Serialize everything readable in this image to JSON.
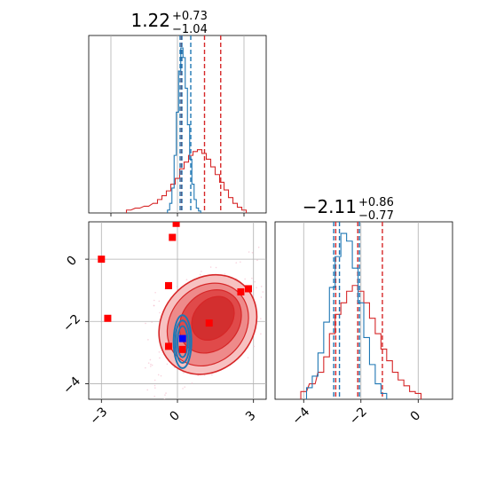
{
  "chart_data": [
    {
      "type": "histogram",
      "panel": "top-left",
      "title": {
        "value": "1.22",
        "upper": "+0.73",
        "lower": "−1.04"
      },
      "xlim": [
        -4,
        4
      ],
      "grid": true,
      "series": [
        {
          "color": "#d62728",
          "quantiles": [
            0.18,
            1.22,
            1.95
          ],
          "bins": [
            [
              -2.2,
              0.3
            ],
            [
              -1.8,
              0.5
            ],
            [
              -1.4,
              0.7
            ],
            [
              -1.0,
              1.0
            ],
            [
              -0.8,
              1.4
            ],
            [
              -0.6,
              1.8
            ],
            [
              -0.4,
              2.3
            ],
            [
              -0.2,
              3.0
            ],
            [
              0.0,
              3.6
            ],
            [
              0.2,
              4.6
            ],
            [
              0.4,
              5.3
            ],
            [
              0.6,
              6.0
            ],
            [
              0.8,
              6.4
            ],
            [
              1.0,
              6.6
            ],
            [
              1.2,
              6.2
            ],
            [
              1.4,
              5.6
            ],
            [
              1.6,
              4.8
            ],
            [
              1.8,
              4.0
            ],
            [
              2.0,
              3.2
            ],
            [
              2.2,
              2.4
            ],
            [
              2.4,
              1.6
            ],
            [
              2.6,
              1.0
            ],
            [
              2.8,
              0.6
            ],
            [
              3.0,
              0.3
            ]
          ]
        },
        {
          "color": "#1f77b4",
          "quantiles": [
            0.12,
            0.2,
            0.6
          ],
          "bins": [
            [
              -0.4,
              0.3
            ],
            [
              -0.3,
              1.0
            ],
            [
              -0.2,
              2.6
            ],
            [
              -0.1,
              6.0
            ],
            [
              0.0,
              10.5
            ],
            [
              0.1,
              14.8
            ],
            [
              0.2,
              17.2
            ],
            [
              0.3,
              16.2
            ],
            [
              0.4,
              13.0
            ],
            [
              0.5,
              9.2
            ],
            [
              0.6,
              5.6
            ],
            [
              0.7,
              3.0
            ],
            [
              0.8,
              1.4
            ],
            [
              0.9,
              0.5
            ],
            [
              1.0,
              0.2
            ]
          ]
        }
      ]
    },
    {
      "type": "histogram",
      "panel": "bottom-right",
      "title": {
        "value": "−2.11",
        "upper": "+0.86",
        "lower": "−0.77"
      },
      "xlim": [
        -5,
        1.2
      ],
      "xticks": [
        "−4",
        "−2",
        "0"
      ],
      "grid": true,
      "series": [
        {
          "color": "#d62728",
          "quantiles": [
            -2.88,
            -2.11,
            -1.25
          ],
          "bins": [
            [
              -4.0,
              0.4
            ],
            [
              -3.7,
              0.8
            ],
            [
              -3.4,
              1.4
            ],
            [
              -3.2,
              2.2
            ],
            [
              -3.0,
              3.4
            ],
            [
              -2.8,
              4.4
            ],
            [
              -2.6,
              5.0
            ],
            [
              -2.4,
              5.6
            ],
            [
              -2.2,
              5.9
            ],
            [
              -2.0,
              5.6
            ],
            [
              -1.8,
              5.0
            ],
            [
              -1.6,
              4.2
            ],
            [
              -1.4,
              3.4
            ],
            [
              -1.2,
              2.6
            ],
            [
              -1.0,
              2.0
            ],
            [
              -0.8,
              1.4
            ],
            [
              -0.6,
              1.0
            ],
            [
              -0.4,
              0.7
            ],
            [
              -0.2,
              0.4
            ],
            [
              0.0,
              0.3
            ]
          ]
        },
        {
          "color": "#1f77b4",
          "quantiles": [
            -2.95,
            -2.75,
            -2.05
          ],
          "bins": [
            [
              -3.8,
              0.6
            ],
            [
              -3.6,
              1.2
            ],
            [
              -3.4,
              2.4
            ],
            [
              -3.2,
              4.0
            ],
            [
              -3.0,
              5.8
            ],
            [
              -2.8,
              7.4
            ],
            [
              -2.6,
              8.6
            ],
            [
              -2.4,
              8.2
            ],
            [
              -2.2,
              6.8
            ],
            [
              -2.0,
              5.0
            ],
            [
              -1.8,
              3.2
            ],
            [
              -1.6,
              1.8
            ],
            [
              -1.4,
              0.8
            ],
            [
              -1.2,
              0.3
            ]
          ]
        }
      ]
    },
    {
      "type": "contour",
      "panel": "bottom-left",
      "xlim": [
        -3.5,
        3.5
      ],
      "ylim": [
        -4.5,
        1.2
      ],
      "xticks": [
        "−3",
        "0",
        "3"
      ],
      "yticks": [
        "0",
        "−2",
        "−4"
      ],
      "grid": true,
      "red_contours": {
        "color": "#d62728",
        "levels": [
          {
            "center": [
              1.2,
              -2.1
            ],
            "sx": 2.1,
            "sy": 1.45,
            "fill": "#f7c1c1"
          },
          {
            "center": [
              1.2,
              -2.1
            ],
            "sx": 1.75,
            "sy": 1.2,
            "fill": "#ee8a8a"
          },
          {
            "center": [
              1.3,
              -2.0
            ],
            "sx": 1.35,
            "sy": 0.9,
            "fill": "#e04a4a"
          },
          {
            "center": [
              1.4,
              -1.9
            ],
            "sx": 0.95,
            "sy": 0.6,
            "fill": "#d32f2f"
          }
        ],
        "angle_deg": 48
      },
      "blue_contours": {
        "color": "#1f77b4",
        "levels": [
          {
            "center": [
              0.2,
              -2.65
            ],
            "sx": 0.35,
            "sy": 0.85
          },
          {
            "center": [
              0.2,
              -2.65
            ],
            "sx": 0.28,
            "sy": 0.68
          },
          {
            "center": [
              0.2,
              -2.65
            ],
            "sx": 0.2,
            "sy": 0.5
          }
        ]
      },
      "red_markers": [
        [
          -3.0,
          0.0
        ],
        [
          -2.75,
          -1.9
        ],
        [
          -0.2,
          0.7
        ],
        [
          -0.35,
          -0.85
        ],
        [
          -0.05,
          1.15
        ],
        [
          -0.35,
          -2.8
        ],
        [
          0.2,
          -2.9
        ],
        [
          1.25,
          -2.05
        ],
        [
          2.5,
          -1.05
        ],
        [
          2.8,
          -0.95
        ]
      ],
      "blue_marker": [
        0.2,
        -2.55
      ]
    }
  ]
}
